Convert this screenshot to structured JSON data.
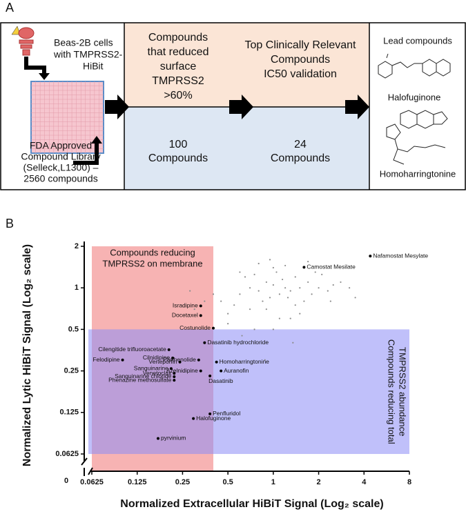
{
  "panel_a": {
    "label": "A",
    "cells": [
      "Beas-2B cells",
      "with TMPRSS2-",
      "HiBit"
    ],
    "library": [
      "FDA Approved",
      "Compound Library",
      "(Selleck,L1300) –",
      "2560 compounds"
    ],
    "stage1_top": [
      "Compounds",
      "that reduced",
      "surface",
      "TMPRSS2",
      ">60%"
    ],
    "stage2_top": [
      "Top Clinically Relevant",
      "Compounds",
      "IC50 validation"
    ],
    "stage1_bottom": [
      "100",
      "Compounds"
    ],
    "stage2_bottom": [
      "24",
      "Compounds"
    ],
    "lead_title": "Lead compounds",
    "lead_compounds": [
      "Halofuginone",
      "Homoharringtonine"
    ]
  },
  "panel_b_label": "B",
  "chart_data": {
    "type": "scatter",
    "x_label": "Normalized Extracellular HiBiT Signal (Log₂ scale)",
    "y_label": "Normalized Lytic HiBiT Signal (Log₂ scale)",
    "log_scale": true,
    "log_base": 2,
    "origin_label": "0",
    "xlim": [
      0.0625,
      8
    ],
    "ylim": [
      0.0625,
      2
    ],
    "xticks": [
      0.0625,
      0.125,
      0.25,
      0.5,
      1,
      2,
      4,
      8
    ],
    "yticks": [
      0.0625,
      0.125,
      0.25,
      0.5,
      1,
      2
    ],
    "regions": [
      {
        "label": [
          "Compounds reducing",
          "TMPRSS2 on membrane"
        ],
        "color": "#f28a8a",
        "xlim": [
          0.0625,
          0.4
        ]
      },
      {
        "label": [
          "Compounds reducing total",
          "TMPRSS2 abundance"
        ],
        "color": "#8c8cf5",
        "ylim": [
          0.0625,
          0.5
        ]
      }
    ],
    "points": {
      "color": "#8c8c8c",
      "x": [
        0.6,
        0.7,
        0.8,
        0.9,
        1.0,
        1.1,
        1.2,
        1.3,
        1.5,
        1.7,
        2.0,
        2.3,
        0.65,
        0.75,
        0.85,
        0.95,
        1.05,
        1.15,
        1.25,
        1.4,
        1.6,
        1.8,
        2.1,
        2.5,
        0.55,
        0.7,
        0.9,
        1.0,
        1.2,
        1.4,
        1.9,
        2.8,
        3.2,
        0.5,
        0.45,
        0.6,
        0.8,
        1.1,
        1.3,
        0.4,
        0.35,
        0.3,
        0.5,
        0.95,
        1.7,
        2.4,
        0.75,
        1.0,
        0.62,
        1.35,
        3.5,
        0.28,
        0.88,
        1.5
      ],
      "y": [
        0.9,
        1.0,
        0.95,
        1.1,
        1.05,
        0.9,
        1.0,
        0.95,
        1.0,
        1.1,
        1.0,
        0.95,
        1.2,
        1.25,
        0.8,
        0.85,
        1.3,
        1.15,
        0.85,
        1.2,
        0.8,
        0.9,
        1.25,
        1.05,
        0.75,
        0.7,
        0.7,
        1.4,
        1.45,
        0.75,
        1.3,
        1.1,
        1.0,
        0.65,
        0.8,
        1.3,
        1.5,
        0.6,
        0.6,
        0.9,
        0.8,
        0.7,
        0.55,
        1.6,
        1.55,
        0.8,
        0.5,
        0.5,
        0.45,
        0.4,
        0.85,
        0.95,
        0.3,
        0.65
      ]
    },
    "labeled_points": {
      "color": "#000000",
      "labels": [
        "Nafamostat Mesylate",
        "Camostat Mesilate",
        "Isradipine",
        "Docetaxel",
        "Costunolide",
        "Dasatinib hydrochloride",
        "Cilengitide trifluoroacetate",
        "Cilnidipine",
        "Felodipine",
        "Parthenolide",
        "Verteporfin",
        "Homoharringtonine",
        "Sanguinarine",
        "Azelnidipine",
        "Auranofin",
        "Venetoclax",
        "Dasatinib",
        "Sanguinarine chloride",
        "Phenazine methosulfate",
        "Penfluridol",
        "Halofuginone",
        "pyrvinium"
      ],
      "x": [
        4.4,
        1.6,
        0.33,
        0.33,
        0.4,
        0.35,
        0.203,
        0.215,
        0.1,
        0.32,
        0.24,
        0.42,
        0.21,
        0.33,
        0.45,
        0.22,
        0.38,
        0.22,
        0.22,
        0.38,
        0.295,
        0.172
      ],
      "y": [
        1.7,
        1.41,
        0.74,
        0.63,
        0.51,
        0.4,
        0.356,
        0.31,
        0.3,
        0.3,
        0.29,
        0.29,
        0.26,
        0.25,
        0.25,
        0.24,
        0.23,
        0.227,
        0.214,
        0.122,
        0.113,
        0.081
      ]
    }
  }
}
